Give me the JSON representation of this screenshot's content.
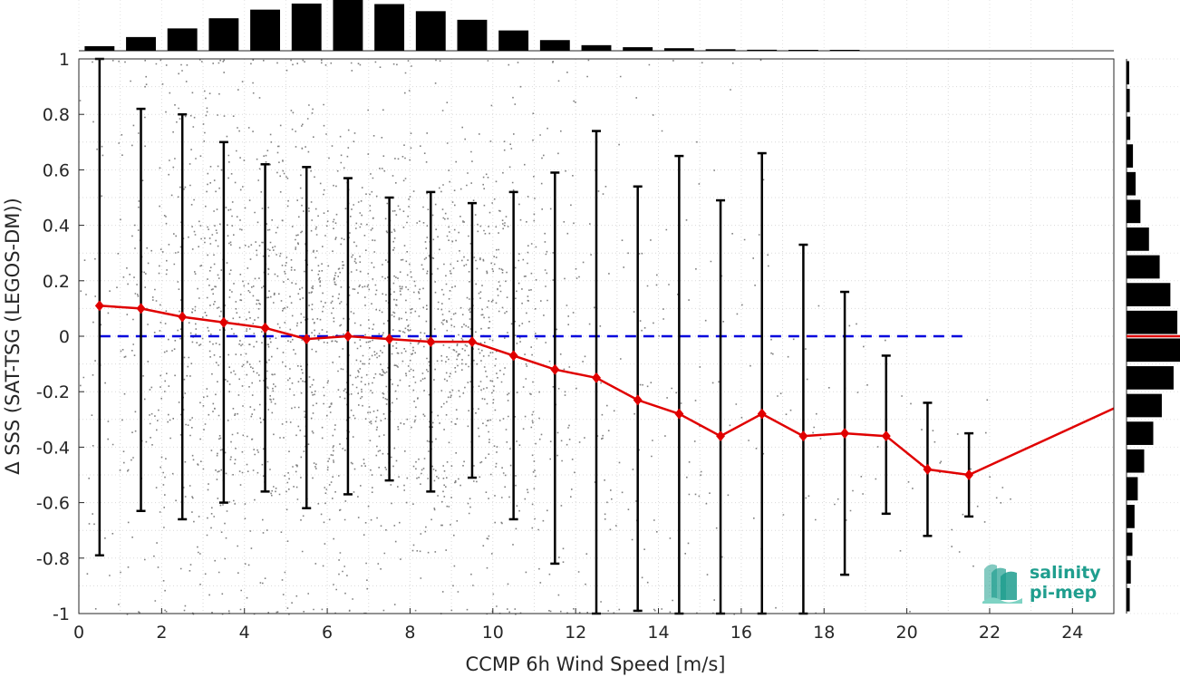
{
  "chart_data": {
    "type": "scatter",
    "xlabel": "CCMP 6h Wind Speed [m/s]",
    "ylabel": "Δ SSS (SAT-TSG (LEGOS-DM))",
    "xlim": [
      0,
      25
    ],
    "ylim": [
      -1,
      1
    ],
    "x_ticks": [
      "0",
      "2",
      "4",
      "6",
      "8",
      "10",
      "12",
      "14",
      "16",
      "18",
      "20",
      "22",
      "24"
    ],
    "y_ticks": [
      "-1",
      "-0.8",
      "-0.6",
      "-0.4",
      "-0.2",
      "0",
      "0.2",
      "0.4",
      "0.6",
      "0.8",
      "1"
    ],
    "grid": true,
    "background_points_color": "#808080",
    "mean_series": {
      "color": "#e00000",
      "x": [
        0.5,
        1.5,
        2.5,
        3.5,
        4.5,
        5.5,
        6.5,
        7.5,
        8.5,
        9.5,
        10.5,
        11.5,
        12.5,
        13.5,
        14.5,
        15.5,
        16.5,
        17.5,
        18.5,
        19.5,
        20.5,
        21.5
      ],
      "y": [
        0.11,
        0.1,
        0.07,
        0.05,
        0.03,
        -0.01,
        0.0,
        -0.01,
        -0.02,
        -0.02,
        -0.07,
        -0.12,
        -0.15,
        -0.23,
        -0.28,
        -0.36,
        -0.28,
        -0.36,
        -0.35,
        -0.36,
        -0.48,
        -0.5
      ],
      "extension_to": [
        25,
        -0.26
      ]
    },
    "error_bars": {
      "color": "#000000",
      "x": [
        0.5,
        1.5,
        2.5,
        3.5,
        4.5,
        5.5,
        6.5,
        7.5,
        8.5,
        9.5,
        10.5,
        11.5,
        12.5,
        13.5,
        14.5,
        15.5,
        16.5,
        17.5,
        18.5,
        19.5,
        20.5,
        21.5
      ],
      "upper": [
        1.0,
        0.82,
        0.8,
        0.7,
        0.62,
        0.61,
        0.57,
        0.5,
        0.52,
        0.48,
        0.52,
        0.59,
        0.74,
        0.54,
        0.65,
        0.49,
        0.66,
        0.33,
        0.16,
        -0.07,
        -0.24,
        -0.35
      ],
      "lower": [
        -0.79,
        -0.63,
        -0.66,
        -0.6,
        -0.56,
        -0.62,
        -0.57,
        -0.52,
        -0.56,
        -0.51,
        -0.66,
        -0.82,
        -1.0,
        -0.99,
        -1.0,
        -1.0,
        -1.0,
        -1.0,
        -0.86,
        -0.64,
        -0.72,
        -0.65
      ]
    },
    "zero_line": {
      "y": 0,
      "color": "#0000dd",
      "style": "dashed"
    },
    "top_histogram": {
      "x": [
        0.5,
        1.5,
        2.5,
        3.5,
        4.5,
        5.5,
        6.5,
        7.5,
        8.5,
        9.5,
        10.5,
        11.5,
        12.5,
        13.5,
        14.5,
        15.5,
        16.5,
        17.5,
        18.5
      ],
      "relative_counts": [
        0.09,
        0.27,
        0.44,
        0.64,
        0.81,
        0.93,
        1.0,
        0.92,
        0.78,
        0.61,
        0.4,
        0.21,
        0.11,
        0.07,
        0.05,
        0.03,
        0.02,
        0.01,
        0.01
      ]
    },
    "right_histogram": {
      "y": [
        0.95,
        0.85,
        0.75,
        0.65,
        0.55,
        0.45,
        0.35,
        0.25,
        0.15,
        0.05,
        -0.05,
        -0.15,
        -0.25,
        -0.35,
        -0.45,
        -0.55,
        -0.65,
        -0.75,
        -0.85,
        -0.95
      ],
      "relative_counts": [
        0.05,
        0.06,
        0.07,
        0.12,
        0.17,
        0.26,
        0.42,
        0.62,
        0.82,
        0.95,
        1.0,
        0.88,
        0.66,
        0.5,
        0.33,
        0.21,
        0.15,
        0.11,
        0.08,
        0.06
      ],
      "mean_marker_color": "#e00000"
    }
  },
  "logo": {
    "line1": "salinity",
    "line2": "pi-mep",
    "color": "#1f9e8e"
  }
}
